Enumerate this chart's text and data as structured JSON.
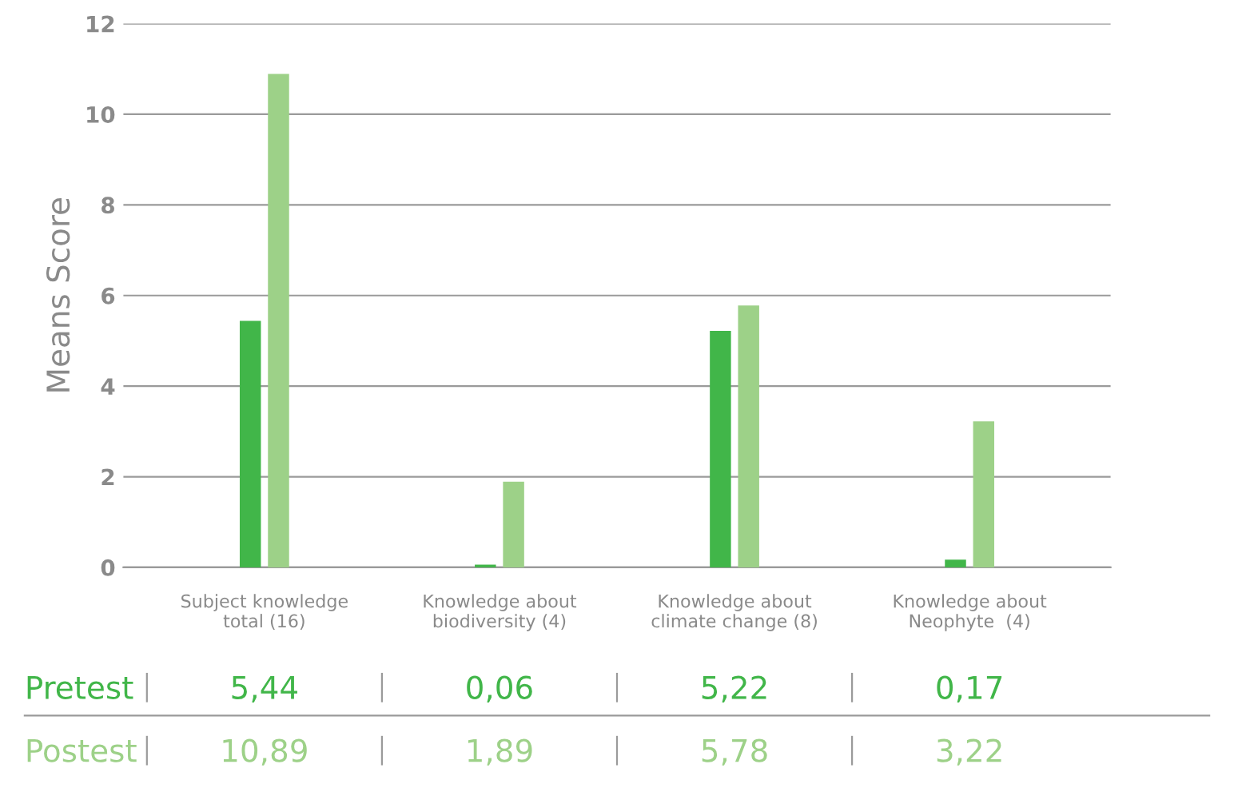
{
  "chart_data": {
    "type": "bar",
    "ylabel": "Means Score",
    "categories": [
      "Subject knowledge\ntotal (16)",
      "Knowledge about\nbiodiversity (4)",
      "Knowledge about\nclimate change (8)",
      "Knowledge about\nNeophyte  (4)"
    ],
    "series": [
      {
        "name": "Pretest",
        "color": "#41b649",
        "values": [
          5.44,
          0.06,
          5.22,
          0.17
        ],
        "value_labels": [
          "5,44",
          "0,06",
          "5,22",
          "0,17"
        ]
      },
      {
        "name": "Postest",
        "color": "#9dd188",
        "values": [
          10.89,
          1.89,
          5.78,
          3.22
        ],
        "value_labels": [
          "10,89",
          "1,89",
          "5,78",
          "3,22"
        ]
      }
    ],
    "ylim": [
      0,
      12
    ],
    "yticks": [
      0,
      2,
      4,
      6,
      8,
      10,
      12
    ],
    "grid": "y",
    "legend": false
  }
}
